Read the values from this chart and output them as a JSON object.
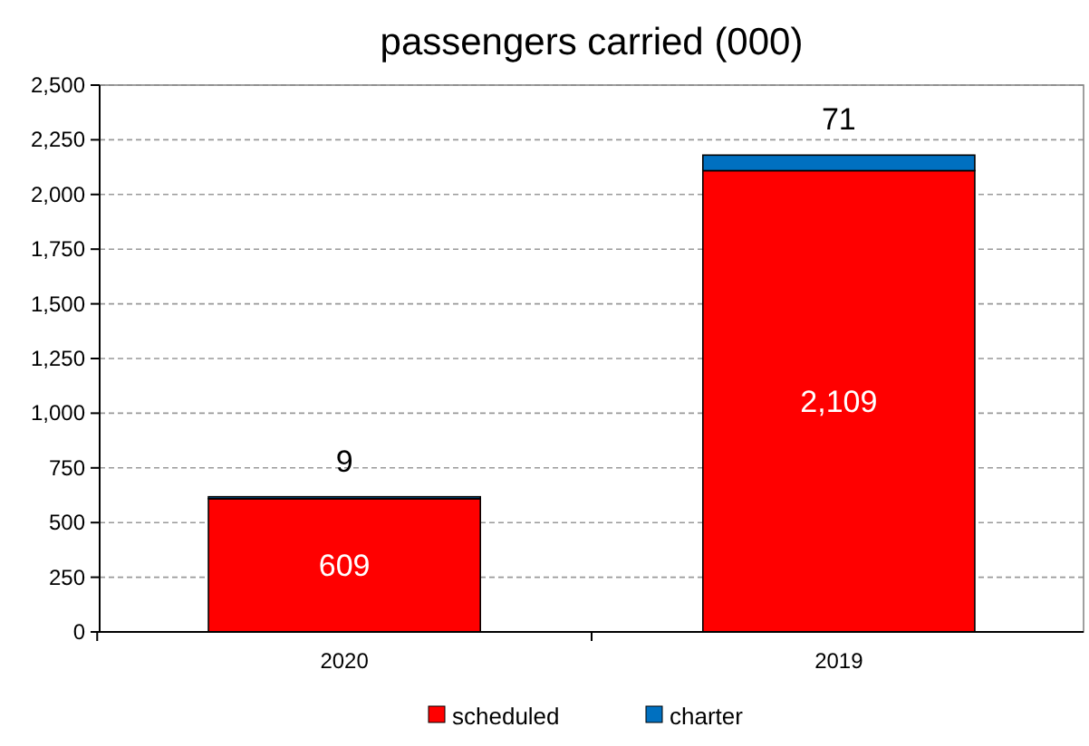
{
  "chart_data": {
    "type": "bar",
    "title": "passengers carried (000)",
    "categories": [
      "2020",
      "2019"
    ],
    "stacked": true,
    "series": [
      {
        "name": "scheduled",
        "color": "#ff0000",
        "values": [
          609,
          2109
        ],
        "value_labels": [
          "609",
          "2,109"
        ]
      },
      {
        "name": "charter",
        "color": "#0070c0",
        "values": [
          9,
          71
        ],
        "value_labels": [
          "9",
          "71"
        ]
      }
    ],
    "ylim": [
      0,
      2500
    ],
    "yticks": [
      0,
      {
        "value": 250,
        "label": "250"
      },
      {
        "value": 500,
        "label": "500"
      },
      {
        "value": 750,
        "label": "750"
      },
      {
        "value": 1000,
        "label": "1,000"
      },
      {
        "value": 1250,
        "label": "1,250"
      },
      {
        "value": 1500,
        "label": "1,500"
      },
      {
        "value": 1750,
        "label": "1,750"
      },
      {
        "value": 2000,
        "label": "2,000"
      },
      {
        "value": 2250,
        "label": "2,250"
      },
      {
        "value": 2500,
        "label": "2,500"
      }
    ],
    "grid": "y",
    "legend": "bottom"
  }
}
